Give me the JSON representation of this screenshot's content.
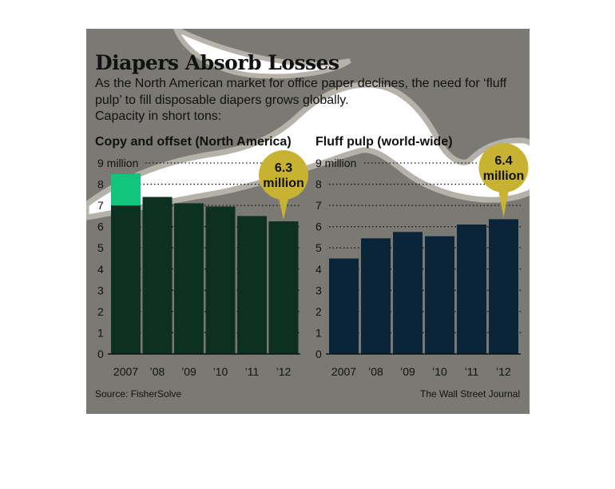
{
  "header": {
    "title": "Diapers Absorb Losses",
    "subtitle": "As the North American market for office paper declines, the need for ‘fluff pulp’ to fill disposable diapers grows globally.",
    "note": "Capacity in short tons:"
  },
  "footer": {
    "source": "Source: FisherSolve",
    "credit": "The Wall Street Journal"
  },
  "colors": {
    "panel": "#7b7974",
    "blob": "#ffffff",
    "blob_edge": "#b5b2aa",
    "copy_bar": "#0c3022",
    "copy_bar_highlight": "#12c57c",
    "fluff_bar": "#0b2538",
    "callout": "#c8b232"
  },
  "chart_data": [
    {
      "type": "bar",
      "title": "Copy and offset (North America)",
      "categories": [
        "2007",
        "’08",
        "’09",
        "’10",
        "’11",
        "’12"
      ],
      "values": [
        8.5,
        7.4,
        7.1,
        6.95,
        6.5,
        6.25
      ],
      "ylim": [
        0,
        9
      ],
      "yticks": [
        0,
        1,
        2,
        3,
        4,
        5,
        6,
        7,
        8,
        9
      ],
      "ytick_top_label": "9 million",
      "callout": "6.3 million",
      "callout_lines": [
        "6.3",
        "million"
      ],
      "callout_index": 5
    },
    {
      "type": "bar",
      "title": "Fluff pulp (world-wide)",
      "categories": [
        "2007",
        "’08",
        "’09",
        "’10",
        "’11",
        "’12"
      ],
      "values": [
        4.5,
        5.45,
        5.75,
        5.55,
        6.1,
        6.35
      ],
      "ylim": [
        0,
        9
      ],
      "yticks": [
        0,
        1,
        2,
        3,
        4,
        5,
        6,
        7,
        8,
        9
      ],
      "ytick_top_label": "9 million",
      "callout": "6.4 million",
      "callout_lines": [
        "6.4",
        "million"
      ],
      "callout_index": 5
    }
  ]
}
